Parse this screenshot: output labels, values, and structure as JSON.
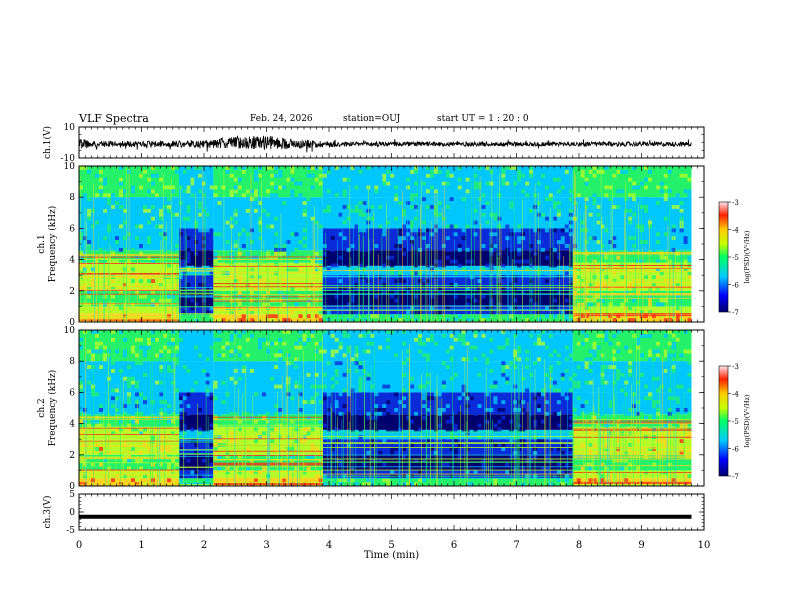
{
  "header": {
    "title": "VLF Spectra",
    "date": "Feb. 24, 2026",
    "station": "station=OUJ",
    "start_ut": "start  UT =   1 : 20 : 0"
  },
  "colors": {
    "deep": "#00006e",
    "blue": "#0a2cd8",
    "cyan": "#00c8ff",
    "green": "#24f06a",
    "lime": "#b4ff28",
    "yellow": "#ffd21e",
    "red": "#ff2a14",
    "waveform": "#000000"
  },
  "chart_data": [
    {
      "type": "line",
      "id": "ch1-waveform",
      "ylabel": "ch.1(V)",
      "ylim": [
        -10,
        10
      ],
      "yticks": [
        10,
        -10
      ],
      "xlim": [
        0,
        10
      ],
      "description_points": {
        "x": [
          0,
          0.5,
          1,
          1.5,
          2,
          2.5,
          3,
          3.5,
          4,
          4.5,
          5,
          5.5,
          6,
          6.5,
          7,
          7.5,
          8,
          8.5,
          9,
          9.5,
          9.8
        ],
        "y_mean": [
          -1,
          -1,
          -1,
          -1,
          -1,
          0,
          0,
          -1,
          -1,
          -1,
          -1,
          -1,
          -1,
          -1,
          -1,
          -1,
          -1,
          -1,
          -1,
          -1,
          -1
        ],
        "y_amplitude": [
          3,
          2,
          2,
          2,
          2.5,
          4,
          4.5,
          3,
          2,
          1.5,
          1.5,
          1.5,
          1.5,
          1.5,
          1.5,
          1.5,
          1.5,
          1.5,
          1.5,
          1.5,
          1.5
        ]
      }
    },
    {
      "type": "heatmap",
      "id": "ch1-spectrogram",
      "ylabel": "ch.1\nFrequency (kHz)",
      "ylim": [
        0,
        10
      ],
      "yticks": [
        0,
        2,
        4,
        6,
        8,
        10
      ],
      "xlim": [
        0,
        10
      ],
      "data_end_min": 9.8,
      "segments": [
        {
          "start": 0,
          "end": 1.6,
          "state": "active"
        },
        {
          "start": 1.6,
          "end": 2.15,
          "state": "quiet"
        },
        {
          "start": 2.15,
          "end": 3.9,
          "state": "active"
        },
        {
          "start": 3.9,
          "end": 7.9,
          "state": "quiet"
        },
        {
          "start": 7.9,
          "end": 9.8,
          "state": "active"
        }
      ],
      "colorbar": {
        "label": "log(PSD)(V²/Hz)",
        "range": [
          -7,
          -3
        ],
        "ticks": [
          -3,
          -4,
          -5,
          -6,
          -7
        ]
      }
    },
    {
      "type": "heatmap",
      "id": "ch2-spectrogram",
      "ylabel": "ch.2\nFrequency (kHz)",
      "ylim": [
        0,
        10
      ],
      "yticks": [
        0,
        2,
        4,
        6,
        8,
        10
      ],
      "xlim": [
        0,
        10
      ],
      "data_end_min": 9.8,
      "segments": [
        {
          "start": 0,
          "end": 1.6,
          "state": "active"
        },
        {
          "start": 1.6,
          "end": 2.15,
          "state": "quiet"
        },
        {
          "start": 2.15,
          "end": 3.9,
          "state": "active"
        },
        {
          "start": 3.9,
          "end": 7.9,
          "state": "quiet"
        },
        {
          "start": 7.9,
          "end": 9.8,
          "state": "active"
        }
      ],
      "colorbar": {
        "label": "log(PSD)(V²/Hz)",
        "range": [
          -7,
          -3
        ],
        "ticks": [
          -3,
          -4,
          -5,
          -6,
          -7
        ]
      }
    },
    {
      "type": "line",
      "id": "ch3-waveform",
      "ylabel": "ch.3(V)",
      "ylim": [
        -5,
        5
      ],
      "yticks": [
        5,
        0,
        -5
      ],
      "xlim": [
        0,
        10
      ],
      "description_points": {
        "x": [
          0,
          9.8
        ],
        "y": [
          -1.3,
          -1.3
        ]
      }
    }
  ],
  "xaxis": {
    "label": "Time (min)",
    "ticks": [
      0,
      1,
      2,
      3,
      4,
      5,
      6,
      7,
      8,
      9,
      10
    ],
    "tick_labels": [
      "0",
      "1",
      "2",
      "3",
      "4",
      "5",
      "6",
      "7",
      "8",
      "9",
      "10"
    ]
  }
}
